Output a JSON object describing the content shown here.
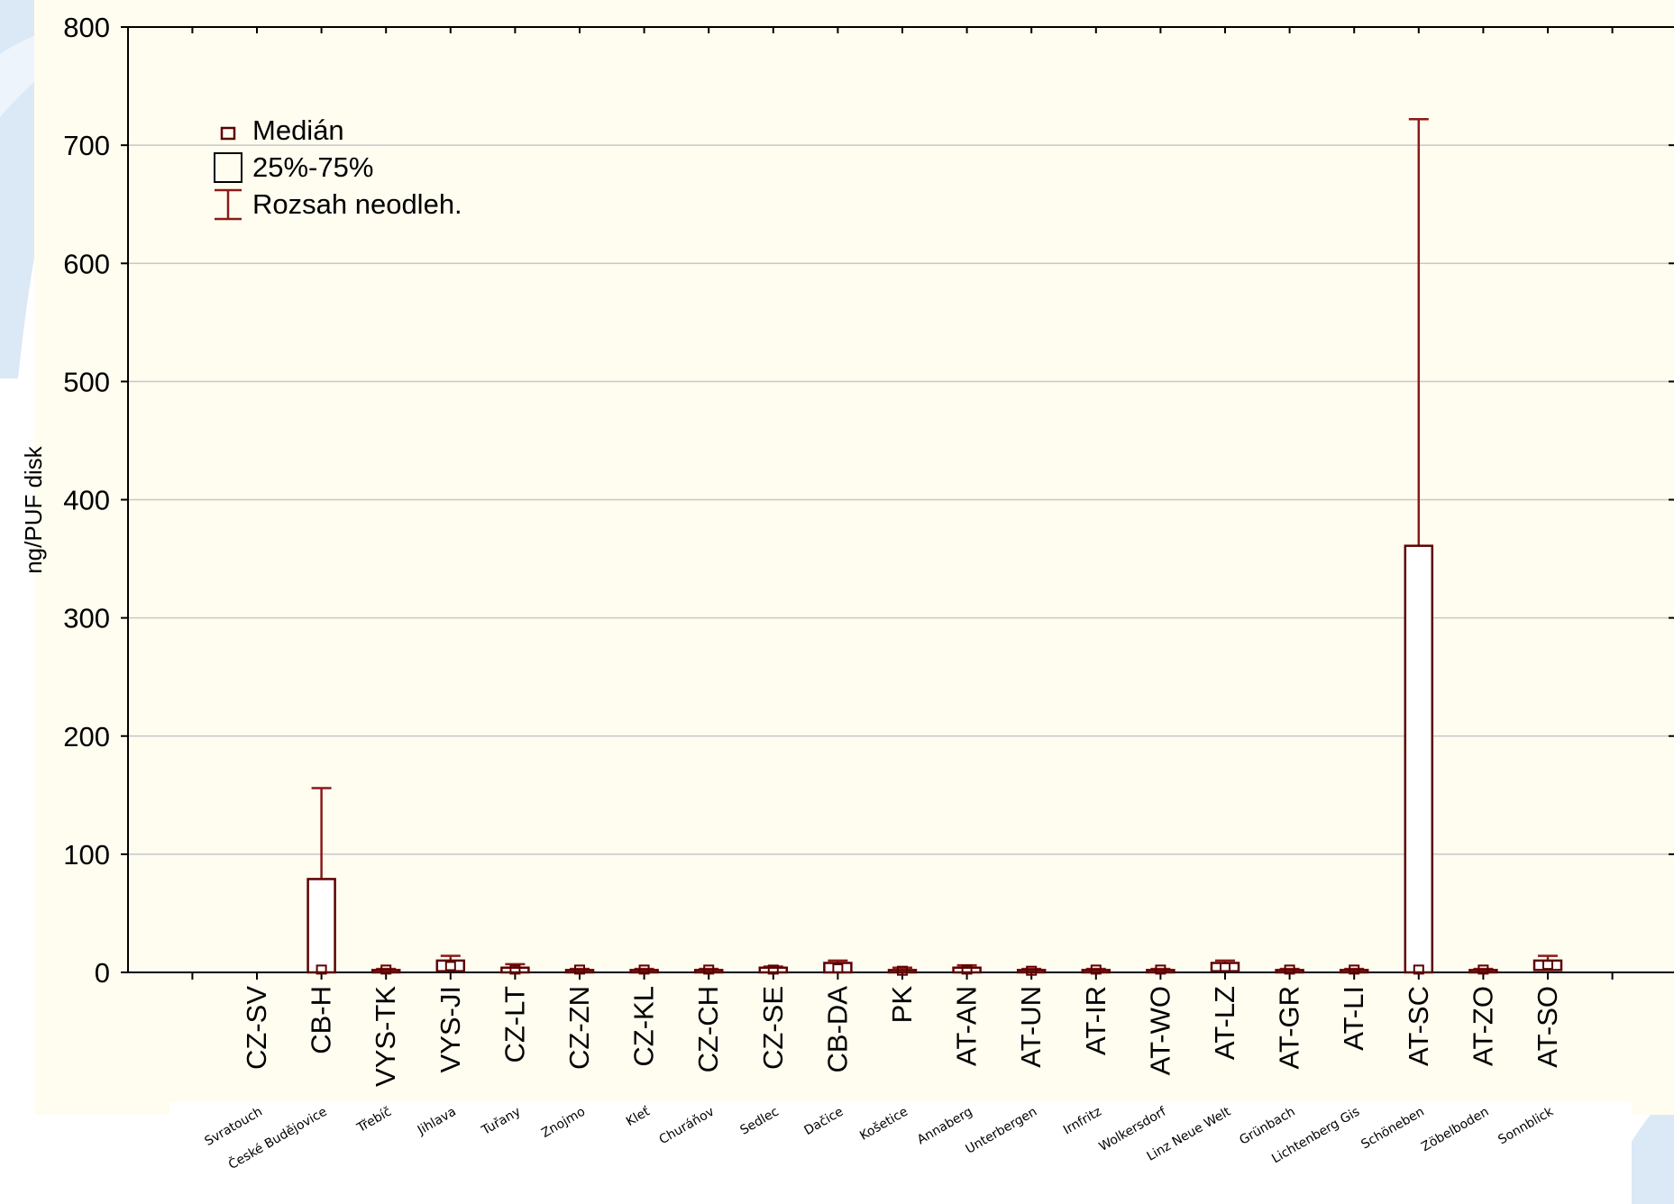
{
  "chart_data": {
    "type": "box",
    "ylabel": "ng/PUF disk",
    "ylim": [
      0,
      800
    ],
    "y_ticks": [
      "0",
      "100",
      "200",
      "300",
      "400",
      "500",
      "600",
      "700",
      "800"
    ],
    "legend": {
      "placement": "top-left",
      "items": [
        "Medián",
        "25%-75%",
        "Rozsah neodleh."
      ]
    },
    "categories": [
      "CZ-SV",
      "CB-H",
      "VYS-TK",
      "VYS-JI",
      "CZ-LT",
      "CZ-ZN",
      "CZ-KL",
      "CZ-CH",
      "CZ-SE",
      "CB-DA",
      "PK",
      "AT-AN",
      "AT-UN",
      "AT-IR",
      "AT-WO",
      "AT-LZ",
      "AT-GR",
      "AT-LI",
      "AT-SC",
      "AT-ZO",
      "AT-SO"
    ],
    "site_names": [
      "Svratouch",
      "České Budějovice",
      "Třebíč",
      "Jihlava",
      "Tuřany",
      "Znojmo",
      "Kleť",
      "Churáňov",
      "Sedlec",
      "Dačice",
      "Košetice",
      "Annaberg",
      "Unterbergen",
      "Irnfritz",
      "Wolkersdorf",
      "Linz Neue Welt",
      "Grünbach",
      "Lichtenberg Gis",
      "Schöneben",
      "Zöbelboden",
      "Sonnblick"
    ],
    "boxes": [
      {
        "cat": "CZ-SV",
        "min": null,
        "q1": null,
        "median": null,
        "q3": null,
        "max": null
      },
      {
        "cat": "CB-H",
        "min": 0,
        "q1": 0,
        "median": 2,
        "q3": 79,
        "max": 156
      },
      {
        "cat": "VYS-TK",
        "min": 0,
        "q1": 0,
        "median": 2,
        "q3": 2,
        "max": 3
      },
      {
        "cat": "VYS-JI",
        "min": 0,
        "q1": 1,
        "median": 5,
        "q3": 10,
        "max": 14
      },
      {
        "cat": "CZ-LT",
        "min": 0,
        "q1": 0,
        "median": 2,
        "q3": 4,
        "max": 7
      },
      {
        "cat": "CZ-ZN",
        "min": 0,
        "q1": 0,
        "median": 2,
        "q3": 2,
        "max": 3
      },
      {
        "cat": "CZ-KL",
        "min": 0,
        "q1": 0,
        "median": 2,
        "q3": 2,
        "max": 3
      },
      {
        "cat": "CZ-CH",
        "min": 0,
        "q1": 0,
        "median": 2,
        "q3": 2,
        "max": 3
      },
      {
        "cat": "CZ-SE",
        "min": 0,
        "q1": 0,
        "median": 2,
        "q3": 4,
        "max": 5
      },
      {
        "cat": "CB-DA",
        "min": 0,
        "q1": 0,
        "median": 3,
        "q3": 8,
        "max": 10
      },
      {
        "cat": "PK",
        "min": 0,
        "q1": 0,
        "median": 1,
        "q3": 2,
        "max": 4
      },
      {
        "cat": "AT-AN",
        "min": 0,
        "q1": 0,
        "median": 2,
        "q3": 4,
        "max": 6
      },
      {
        "cat": "AT-UN",
        "min": 0,
        "q1": 0,
        "median": 1,
        "q3": 2,
        "max": 3
      },
      {
        "cat": "AT-IR",
        "min": 0,
        "q1": 0,
        "median": 2,
        "q3": 2,
        "max": 3
      },
      {
        "cat": "AT-WO",
        "min": 0,
        "q1": 0,
        "median": 2,
        "q3": 2,
        "max": 3
      },
      {
        "cat": "AT-LZ",
        "min": 0,
        "q1": 1,
        "median": 4,
        "q3": 8,
        "max": 10
      },
      {
        "cat": "AT-GR",
        "min": 0,
        "q1": 0,
        "median": 2,
        "q3": 2,
        "max": 3
      },
      {
        "cat": "AT-LI",
        "min": 0,
        "q1": 0,
        "median": 2,
        "q3": 2,
        "max": 3
      },
      {
        "cat": "AT-SC",
        "min": 0,
        "q1": 0,
        "median": 2,
        "q3": 361,
        "max": 722
      },
      {
        "cat": "AT-ZO",
        "min": 0,
        "q1": 0,
        "median": 2,
        "q3": 2,
        "max": 3
      },
      {
        "cat": "AT-SO",
        "min": 0,
        "q1": 2,
        "median": 6,
        "q3": 10,
        "max": 14
      }
    ],
    "grid": "horizontal",
    "colors": {
      "box_stroke": "#5c0000",
      "whisker": "#8b1a1a",
      "grid": "#c8c8c8",
      "plot_background": "#fffcf0",
      "page_background": "#ffffff",
      "accent_blue": "#c8ddf2"
    }
  }
}
